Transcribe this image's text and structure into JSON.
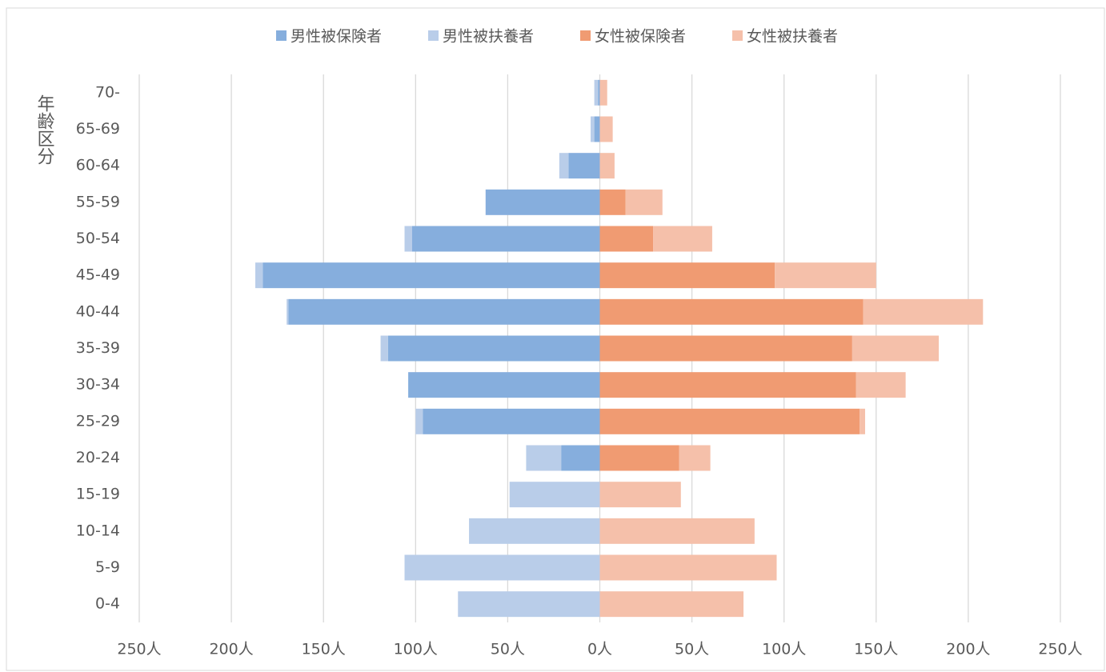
{
  "chart_data": {
    "type": "bar",
    "orientation": "horizontal",
    "stacked": true,
    "y_axis_label": "年齢区分",
    "categories": [
      "0-4",
      "5-9",
      "10-14",
      "15-19",
      "20-24",
      "25-29",
      "30-34",
      "35-39",
      "40-44",
      "45-49",
      "50-54",
      "55-59",
      "60-64",
      "65-69",
      "70-"
    ],
    "series": [
      {
        "name": "男性被保険者",
        "color": "#86aedd",
        "values": [
          0,
          0,
          0,
          0,
          -21,
          -96,
          -104,
          -115,
          -169,
          -183,
          -102,
          -62,
          -17,
          -3,
          -1
        ]
      },
      {
        "name": "男性被扶養者",
        "color": "#b9cde9",
        "values": [
          -77,
          -106,
          -71,
          -49,
          -19,
          -4,
          0,
          -4,
          -1,
          -4,
          -4,
          0,
          -5,
          -2,
          -2
        ]
      },
      {
        "name": "女性被保険者",
        "color": "#f09b72",
        "values": [
          0,
          0,
          0,
          0,
          43,
          141,
          139,
          137,
          143,
          95,
          29,
          14,
          0,
          0,
          0
        ]
      },
      {
        "name": "女性被扶養者",
        "color": "#f5c0aa",
        "values": [
          78,
          96,
          84,
          44,
          17,
          3,
          27,
          47,
          65,
          55,
          32,
          20,
          8,
          7,
          4
        ]
      }
    ],
    "xlim": [
      -250,
      250
    ],
    "xticks": [
      {
        "value": -250,
        "label": "250人"
      },
      {
        "value": -200,
        "label": "200人"
      },
      {
        "value": -150,
        "label": "150人"
      },
      {
        "value": -100,
        "label": "100人"
      },
      {
        "value": -50,
        "label": "50人"
      },
      {
        "value": 0,
        "label": "0人"
      },
      {
        "value": 50,
        "label": "50人"
      },
      {
        "value": 100,
        "label": "100人"
      },
      {
        "value": 150,
        "label": "150人"
      },
      {
        "value": 200,
        "label": "200人"
      },
      {
        "value": 250,
        "label": "250人"
      }
    ],
    "grid": true,
    "legend": "top"
  }
}
